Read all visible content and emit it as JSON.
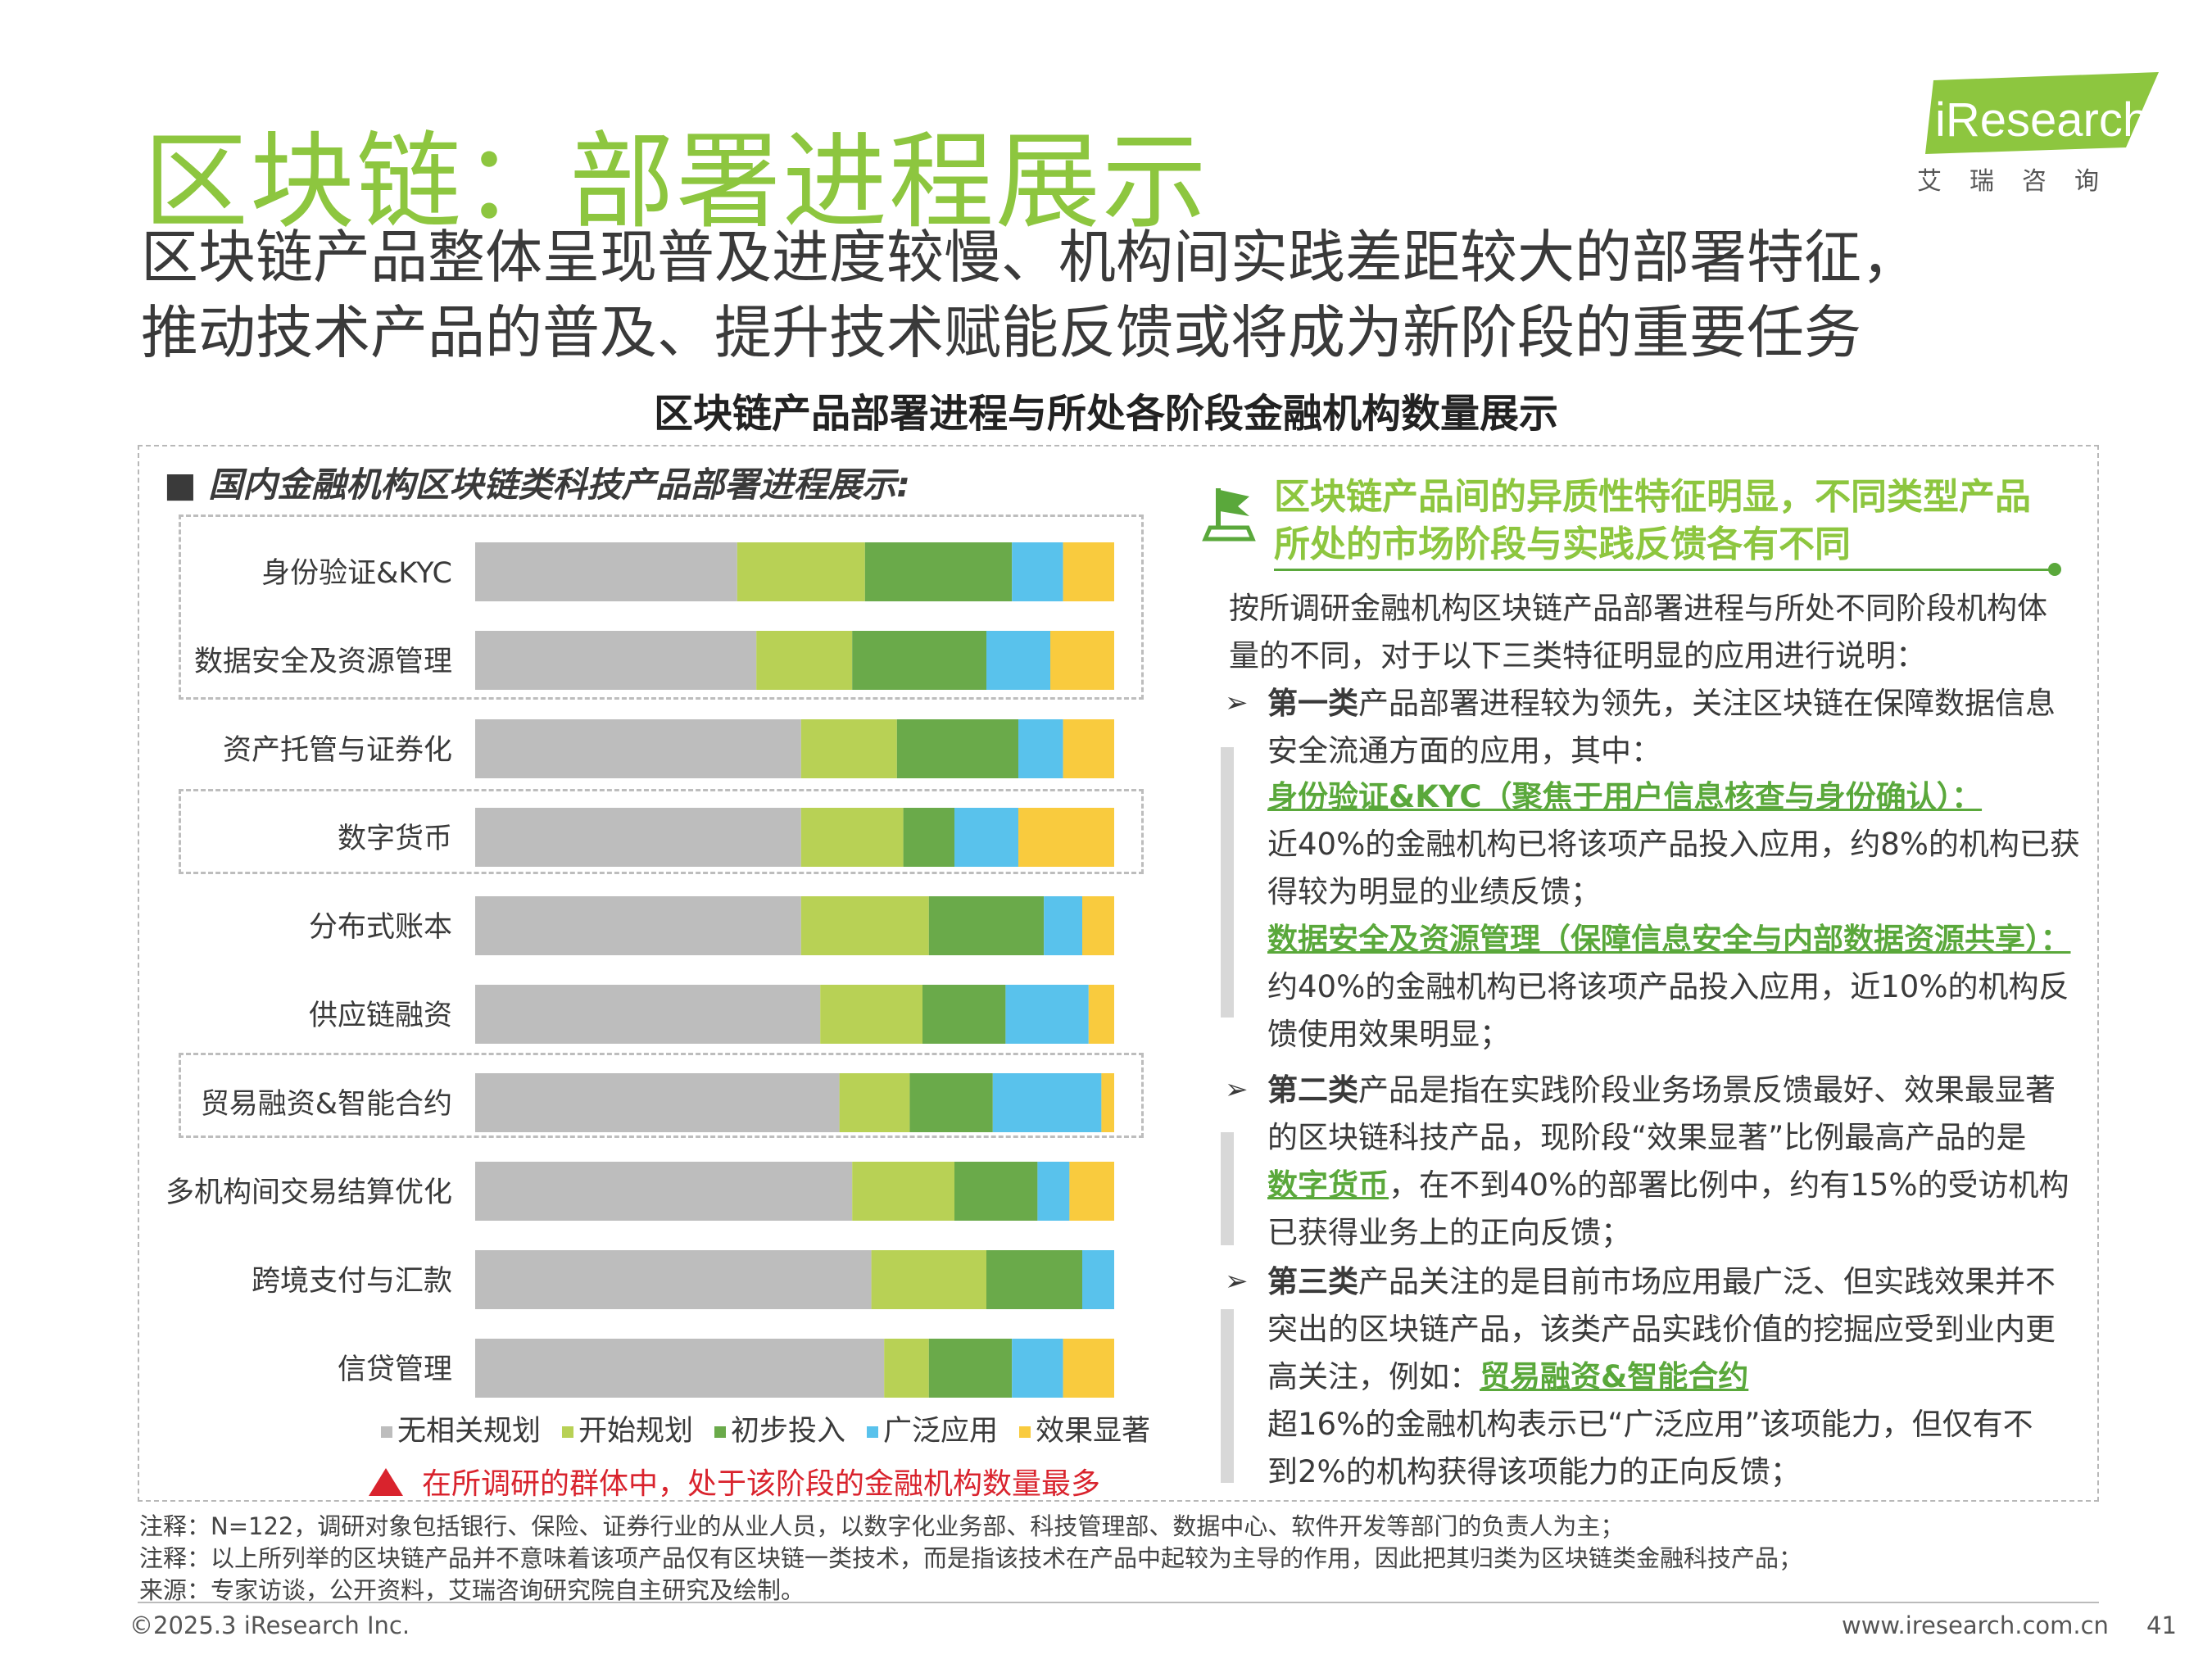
{
  "page": {
    "title": "区块链：部署进程展示",
    "subtitle_line1": "区块链产品整体呈现普及进度较慢、机构间实践差距较大的部署特征，",
    "subtitle_line2": "推动技术产品的普及、提升技术赋能反馈或将成为新阶段的重要任务",
    "chart_title": "区块链产品部署进程与所处各阶段金融机构数量展示",
    "logo_text": "iResearch",
    "logo_cn": "艾瑞咨询",
    "left_header": "■ 国内金融机构区块链类科技产品部署进程展示:",
    "legend_note": "在所调研的群体中，处于该阶段的金融机构数量最多"
  },
  "colors": {
    "brand_green": "#8dc63f",
    "dark_green": "#5aa83b",
    "red": "#d9232d"
  },
  "chart_data": {
    "type": "bar",
    "orientation": "horizontal",
    "stacked": true,
    "normalized": true,
    "categories": [
      "身份验证&KYC",
      "数据安全及资源管理",
      "资产托管与证券化",
      "数字货币",
      "分布式账本",
      "供应链融资",
      "贸易融资&智能合约",
      "多机构间交易结算优化",
      "跨境支付与汇款",
      "信贷管理"
    ],
    "series": [
      {
        "name": "无相关规划",
        "color": "#bdbdbd",
        "values": [
          41,
          44,
          51,
          51,
          51,
          54,
          57,
          59,
          62,
          64
        ]
      },
      {
        "name": "开始规划",
        "color": "#b8d155",
        "values": [
          20,
          15,
          15,
          16,
          20,
          16,
          11,
          16,
          18,
          7
        ]
      },
      {
        "name": "初步投入",
        "color": "#6aaa4a",
        "values": [
          23,
          21,
          19,
          8,
          18,
          13,
          13,
          13,
          15,
          13
        ]
      },
      {
        "name": "广泛应用",
        "color": "#59c2ec",
        "values": [
          8,
          10,
          7,
          10,
          6,
          13,
          17,
          5,
          5,
          8
        ]
      },
      {
        "name": "效果显著",
        "color": "#f9cb3e",
        "values": [
          8,
          10,
          8,
          15,
          5,
          4,
          2,
          7,
          0,
          8
        ]
      }
    ],
    "grouped_highlight": [
      [
        "身份验证&KYC",
        "数据安全及资源管理"
      ],
      [
        "数字货币"
      ],
      [
        "贸易融资&智能合约"
      ]
    ]
  },
  "right_panel": {
    "heading_line1": "区块链产品间的异质性特征明显，不同类型产品",
    "heading_line2": "所处的市场阶段与实践反馈各有不同",
    "intro_line1": "按所调研金融机构区块链产品部署进程与所处不同阶段机构体",
    "intro_line2": "量的不同，对于以下三类特征明显的应用进行说明：",
    "arrow": "➢",
    "c1_bold": "第一类",
    "c1_line1_rest": "产品部署进程较为领先，关注区块链在保障数据信息",
    "c1_line2": "安全流通方面的应用，其中：",
    "c1_item1_title": "身份验证&KYC（聚焦于用户信息核查与身份确认）：",
    "c1_item1_line1": "近40%的金融机构已将该项产品投入应用，约8%的机构已获",
    "c1_item1_line2": "得较为明显的业绩反馈；",
    "c1_item2_title": "数据安全及资源管理（保障信息安全与内部数据资源共享）：",
    "c1_item2_line1": "约40%的金融机构已将该项产品投入应用，近10%的机构反",
    "c1_item2_line2": "馈使用效果明显；",
    "c2_bold": "第二类",
    "c2_line1_rest": "产品是指在实践阶段业务场景反馈最好、效果最显著",
    "c2_line2": "的区块链科技产品，现阶段“效果显著”比例最高产品的是",
    "c2_line3_green": "数字货币",
    "c2_line3_rest": "，在不到40%的部署比例中，约有15%的受访机构",
    "c2_line4": "已获得业务上的正向反馈；",
    "c3_bold": "第三类",
    "c3_line1_rest": "产品关注的是目前市场应用最广泛、但实践效果并不",
    "c3_line2": "突出的区块链产品，该类产品实践价值的挖掘应受到业内更",
    "c3_line3_pre": "高关注，例如：",
    "c3_line3_green": "贸易融资&智能合约",
    "c3_line4": "超16%的金融机构表示已“广泛应用”该项能力，但仅有不",
    "c3_line5": "到2%的机构获得该项能力的正向反馈；"
  },
  "notes": {
    "line1": "注释：N=122，调研对象包括银行、保险、证券行业的从业人员，以数字化业务部、科技管理部、数据中心、软件开发等部门的负责人为主；",
    "line2": "注释：以上所列举的区块链产品并不意味着该项产品仅有区块链一类技术，而是指该技术在产品中起较为主导的作用，因此把其归类为区块链类金融科技产品；",
    "line3": "来源：专家访谈，公开资料，艾瑞咨询研究院自主研究及绘制。"
  },
  "footer": {
    "copyright": "©2025.3 iResearch Inc.",
    "website": "www.iresearch.com.cn",
    "page_number": "41"
  }
}
